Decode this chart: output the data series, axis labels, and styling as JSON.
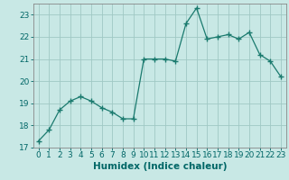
{
  "x": [
    0,
    1,
    2,
    3,
    4,
    5,
    6,
    7,
    8,
    9,
    10,
    11,
    12,
    13,
    14,
    15,
    16,
    17,
    18,
    19,
    20,
    21,
    22,
    23
  ],
  "y": [
    17.3,
    17.8,
    18.7,
    19.1,
    19.3,
    19.1,
    18.8,
    18.6,
    18.3,
    18.3,
    21.0,
    21.0,
    21.0,
    20.9,
    22.6,
    23.3,
    21.9,
    22.0,
    22.1,
    21.9,
    22.2,
    21.2,
    20.9,
    20.2
  ],
  "xlabel": "Humidex (Indice chaleur)",
  "xlim": [
    -0.5,
    23.5
  ],
  "ylim": [
    17,
    23.5
  ],
  "yticks": [
    17,
    18,
    19,
    20,
    21,
    22,
    23
  ],
  "xticks": [
    0,
    1,
    2,
    3,
    4,
    5,
    6,
    7,
    8,
    9,
    10,
    11,
    12,
    13,
    14,
    15,
    16,
    17,
    18,
    19,
    20,
    21,
    22,
    23
  ],
  "line_color": "#1a7a6e",
  "marker_color": "#1a7a6e",
  "bg_color": "#c8e8e5",
  "grid_color": "#a0c8c4",
  "xlabel_fontsize": 7.5,
  "tick_fontsize": 6.5,
  "marker": "+",
  "markersize": 4,
  "linewidth": 0.9
}
